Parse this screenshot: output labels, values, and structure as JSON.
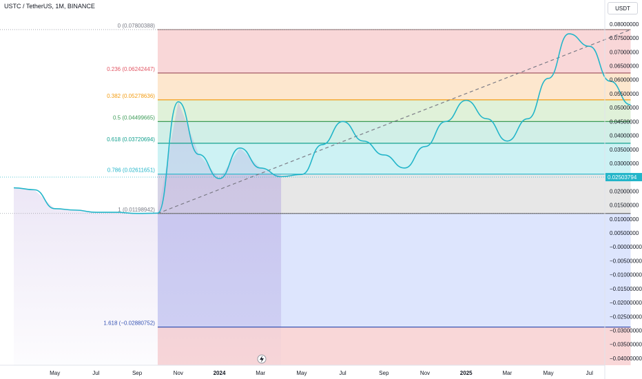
{
  "header": {
    "symbol_title": "USTC / TetherUS, 1M, BINANCE",
    "currency": "USDT"
  },
  "chart_data": {
    "type": "line",
    "x_tick_labels": [
      "May",
      "Jul",
      "Sep",
      "Nov",
      "2024",
      "Mar",
      "May",
      "Jul",
      "Sep",
      "Nov",
      "2025",
      "Mar",
      "May",
      "Jul"
    ],
    "y_tick_labels": [
      "0.08000000",
      "0.07500000",
      "0.07000000",
      "0.06500000",
      "0.06000000",
      "0.05500000",
      "0.05000000",
      "0.04500000",
      "0.04000000",
      "0.03500000",
      "0.03000000",
      "0.02500000",
      "0.02000000",
      "0.01500000",
      "0.01000000",
      "0.00500000",
      "−0.00000000",
      "−0.00500000",
      "−0.01000000",
      "−0.01500000",
      "−0.02000000",
      "−0.02500000",
      "−0.03000000",
      "−0.03500000",
      "−0.04000000"
    ],
    "ylim": [
      -0.0425,
      0.0822
    ],
    "last_price_label": "0.02503794",
    "last_price": 0.02503794,
    "series_color": "#22b5c9",
    "series": [
      {
        "points": [
          [
            "2023-03",
            0.0212
          ],
          [
            "2023-04",
            0.0205
          ],
          [
            "2023-05",
            0.0137
          ],
          [
            "2023-06",
            0.0132
          ],
          [
            "2023-07",
            0.0124
          ],
          [
            "2023-08",
            0.0124
          ],
          [
            "2023-09",
            0.012
          ],
          [
            "2023-10",
            0.0121
          ],
          [
            "2023-11",
            0.0521
          ],
          [
            "2023-12",
            0.0332
          ],
          [
            "2024-01",
            0.0245
          ],
          [
            "2024-02",
            0.0355
          ],
          [
            "2024-03",
            0.0283
          ],
          [
            "2024-04",
            0.0252
          ],
          [
            "2024-05",
            0.026
          ],
          [
            "2024-06",
            0.0367
          ],
          [
            "2024-07",
            0.045
          ],
          [
            "2024-08",
            0.038
          ],
          [
            "2024-09",
            0.033
          ],
          [
            "2024-10",
            0.0283
          ],
          [
            "2024-11",
            0.036
          ],
          [
            "2024-12",
            0.045
          ],
          [
            "2025-01",
            0.0526
          ],
          [
            "2025-02",
            0.046
          ],
          [
            "2025-03",
            0.038
          ],
          [
            "2025-04",
            0.046
          ],
          [
            "2025-05",
            0.0605
          ],
          [
            "2025-06",
            0.0765
          ],
          [
            "2025-07",
            0.072
          ],
          [
            "2025-08",
            0.0595
          ],
          [
            "2025-09",
            0.051
          ]
        ]
      }
    ],
    "fib": {
      "levels": [
        {
          "label": "0 (0.07800388)",
          "value": 0.07800388,
          "line_color": "#8a6d6d",
          "label_color": "#787b86",
          "fill": "#f8d0d1"
        },
        {
          "label": "0.236 (0.06242447)",
          "value": 0.06242447,
          "line_color": "#9c4b59",
          "label_color": "#e25563",
          "fill": "#fde3c6"
        },
        {
          "label": "0.382 (0.05278636)",
          "value": 0.05278636,
          "line_color": "#f39c12",
          "label_color": "#f39c12",
          "fill": "#dbefd2"
        },
        {
          "label": "0.5 (0.04499665)",
          "value": 0.04499665,
          "line_color": "#3c9b57",
          "label_color": "#3c9b57",
          "fill": "#c9ece3"
        },
        {
          "label": "0.618 (0.03720694)",
          "value": 0.03720694,
          "line_color": "#12a08e",
          "label_color": "#12a08e",
          "fill": "#c4f0f2"
        },
        {
          "label": "0.786 (0.02611651)",
          "value": 0.02611651,
          "line_color": "#22b5c9",
          "label_color": "#22b5c9",
          "fill": "#e3e3e3"
        },
        {
          "label": "1 (0.01198942)",
          "value": 0.01198942,
          "line_color": "#6b6b6b",
          "label_color": "#787b86",
          "fill": "#d7e0fd"
        },
        {
          "label": "1.618 (−0.02880752)",
          "value": -0.02880752,
          "line_color": "#3654b3",
          "label_color": "#3654b3",
          "fill": "#f8d0d1"
        }
      ],
      "x_start": "2023-10",
      "x_end": "2025-09",
      "trend_start": [
        "2023-10",
        0.01198942
      ],
      "trend_end": [
        "2025-09",
        0.07800388
      ]
    },
    "history_highlight": {
      "x_start": "2023-10",
      "x_end": "2024-04"
    },
    "grid": false
  }
}
